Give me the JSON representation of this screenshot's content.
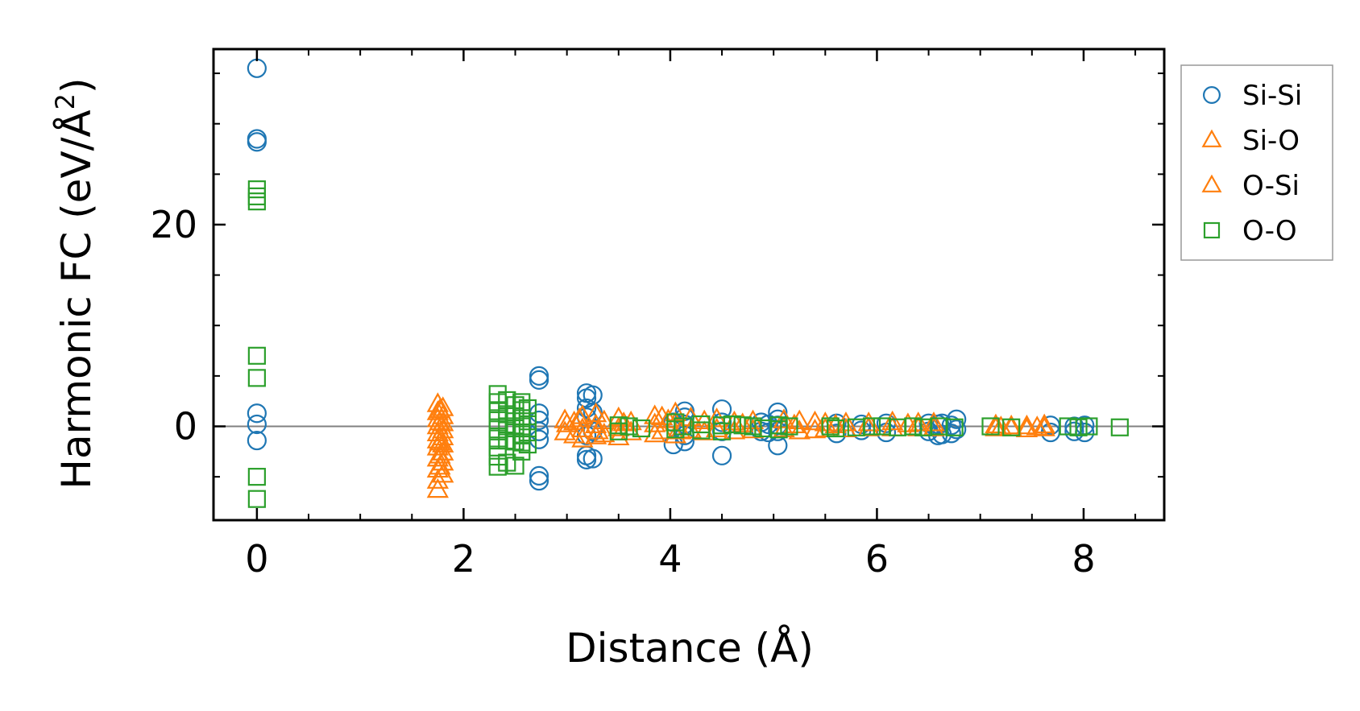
{
  "chart_data": {
    "type": "scatter",
    "title": "",
    "xlabel": "Distance (Å)",
    "ylabel_main": "Harmonic FC (eV/Å",
    "ylabel_sup": "2",
    "ylabel_close": ")",
    "xlim": [
      -0.42,
      8.78
    ],
    "ylim": [
      -9.3,
      37.4
    ],
    "xticks": [
      0,
      2,
      4,
      6,
      8
    ],
    "xtick_labels": [
      "0",
      "2",
      "4",
      "6",
      "8"
    ],
    "yticks": [
      0,
      20
    ],
    "ytick_labels": [
      "0",
      "20"
    ],
    "zero_line": true,
    "grid": false,
    "legend_position": "outside-right-top",
    "series": [
      {
        "name": "Si-Si",
        "marker": "circle",
        "color": "#1f77b4",
        "points": [
          [
            0,
            35.5
          ],
          [
            0,
            28.5
          ],
          [
            0,
            28.2
          ],
          [
            0,
            1.3
          ],
          [
            0,
            0.2
          ],
          [
            0,
            -1.4
          ],
          [
            2.73,
            5.0
          ],
          [
            2.73,
            4.6
          ],
          [
            2.73,
            1.3
          ],
          [
            2.73,
            0.6
          ],
          [
            2.73,
            -0.5
          ],
          [
            2.73,
            -1.3
          ],
          [
            2.73,
            -4.9
          ],
          [
            2.73,
            -5.4
          ],
          [
            3.19,
            3.3
          ],
          [
            3.19,
            2.8
          ],
          [
            3.19,
            1.8
          ],
          [
            3.19,
            0.9
          ],
          [
            3.19,
            -0.9
          ],
          [
            3.19,
            -2.9
          ],
          [
            3.19,
            -3.3
          ],
          [
            3.25,
            3.1
          ],
          [
            3.25,
            1.4
          ],
          [
            3.25,
            -0.5
          ],
          [
            3.25,
            -3.2
          ],
          [
            4.14,
            1.5
          ],
          [
            4.14,
            0.9
          ],
          [
            4.14,
            0.2
          ],
          [
            4.14,
            -0.9
          ],
          [
            4.14,
            -1.5
          ],
          [
            4.03,
            -1.8
          ],
          [
            4.03,
            0.4
          ],
          [
            4.5,
            1.7
          ],
          [
            4.5,
            0.4
          ],
          [
            4.5,
            -0.5
          ],
          [
            4.5,
            -2.9
          ],
          [
            4.88,
            0.4
          ],
          [
            4.88,
            -0.5
          ],
          [
            4.95,
            0.2
          ],
          [
            4.95,
            -0.6
          ],
          [
            5.04,
            1.4
          ],
          [
            5.04,
            0.7
          ],
          [
            5.04,
            0.1
          ],
          [
            5.04,
            -0.5
          ],
          [
            5.04,
            -1.9
          ],
          [
            5.61,
            0.3
          ],
          [
            5.61,
            -0.7
          ],
          [
            5.85,
            0.2
          ],
          [
            5.85,
            -0.4
          ],
          [
            6.09,
            0.3
          ],
          [
            6.09,
            -0.6
          ],
          [
            6.5,
            0.3
          ],
          [
            6.5,
            -0.5
          ],
          [
            6.59,
            0.2
          ],
          [
            6.59,
            -0.9
          ],
          [
            6.63,
            0.3
          ],
          [
            6.63,
            -0.8
          ],
          [
            6.77,
            0.7
          ],
          [
            6.77,
            -0.3
          ],
          [
            6.72,
            0.1
          ],
          [
            6.72,
            -0.7
          ],
          [
            7.68,
            0.1
          ],
          [
            7.68,
            -0.6
          ],
          [
            7.91,
            0.0
          ],
          [
            7.91,
            -0.5
          ],
          [
            8.01,
            0.1
          ],
          [
            8.01,
            -0.6
          ]
        ]
      },
      {
        "name": "Si-O",
        "marker": "triangle",
        "color": "#ff7f0e",
        "points": [
          [
            1.75,
            2.2
          ],
          [
            1.75,
            1.4
          ],
          [
            1.75,
            0.7
          ],
          [
            1.75,
            0.0
          ],
          [
            1.75,
            -0.7
          ],
          [
            1.75,
            -1.4
          ],
          [
            1.75,
            -2.1
          ],
          [
            1.75,
            -3.2
          ],
          [
            1.75,
            -4.3
          ],
          [
            1.75,
            -5.4
          ],
          [
            1.75,
            -6.3
          ],
          [
            1.8,
            1.8
          ],
          [
            1.8,
            1.0
          ],
          [
            1.8,
            0.3
          ],
          [
            1.8,
            -0.4
          ],
          [
            1.8,
            -1.1
          ],
          [
            1.8,
            -1.8
          ],
          [
            1.8,
            -2.6
          ],
          [
            1.8,
            -3.6
          ],
          [
            1.8,
            -4.8
          ],
          [
            2.98,
            0.6
          ],
          [
            2.98,
            -0.6
          ],
          [
            3.07,
            0.4
          ],
          [
            3.07,
            -0.9
          ],
          [
            3.15,
            1.0
          ],
          [
            3.15,
            -0.3
          ],
          [
            3.15,
            -1.3
          ],
          [
            3.28,
            1.2
          ],
          [
            3.28,
            0.1
          ],
          [
            3.28,
            -1.0
          ],
          [
            3.36,
            0.5
          ],
          [
            3.36,
            -0.8
          ],
          [
            3.5,
            0.8
          ],
          [
            3.5,
            -0.2
          ],
          [
            3.5,
            -1.1
          ],
          [
            3.62,
            0.4
          ],
          [
            3.62,
            -0.6
          ],
          [
            3.85,
            1.0
          ],
          [
            3.85,
            0.2
          ],
          [
            3.85,
            -0.8
          ],
          [
            3.92,
            0.9
          ],
          [
            3.92,
            -0.5
          ],
          [
            4.05,
            1.3
          ],
          [
            4.05,
            0.3
          ],
          [
            4.05,
            -0.9
          ],
          [
            4.2,
            0.8
          ],
          [
            4.2,
            -0.4
          ],
          [
            4.33,
            0.5
          ],
          [
            4.33,
            -0.6
          ],
          [
            4.45,
            0.7
          ],
          [
            4.45,
            -0.3
          ],
          [
            4.62,
            0.4
          ],
          [
            4.62,
            -0.5
          ],
          [
            4.8,
            0.5
          ],
          [
            4.8,
            -0.4
          ],
          [
            5.1,
            0.6
          ],
          [
            5.1,
            -0.3
          ],
          [
            5.25,
            0.5
          ],
          [
            5.25,
            -0.5
          ],
          [
            5.4,
            0.4
          ],
          [
            5.4,
            -0.4
          ],
          [
            5.5,
            0.3
          ],
          [
            5.5,
            -0.3
          ],
          [
            5.7,
            0.3
          ],
          [
            5.7,
            -0.3
          ],
          [
            5.92,
            0.3
          ],
          [
            5.92,
            -0.2
          ],
          [
            6.15,
            0.4
          ],
          [
            6.15,
            -0.2
          ],
          [
            6.4,
            0.3
          ],
          [
            6.4,
            -0.2
          ],
          [
            6.55,
            0.3
          ],
          [
            6.55,
            -0.2
          ],
          [
            7.15,
            0.1
          ],
          [
            7.15,
            -0.2
          ],
          [
            7.3,
            0.0
          ],
          [
            7.3,
            -0.2
          ],
          [
            7.45,
            0.0
          ],
          [
            7.45,
            -0.3
          ],
          [
            7.62,
            0.1
          ],
          [
            7.62,
            -0.2
          ]
        ]
      },
      {
        "name": "O-Si",
        "marker": "triangle",
        "color": "#ff7f0e",
        "points": [
          [
            1.77,
            1.6
          ],
          [
            1.77,
            0.4
          ],
          [
            1.77,
            -1.6
          ],
          [
            1.77,
            -2.9
          ],
          [
            1.77,
            -4.0
          ],
          [
            3.0,
            0.2
          ],
          [
            3.12,
            0.7
          ],
          [
            3.3,
            -0.5
          ],
          [
            3.55,
            0.3
          ],
          [
            3.98,
            0.6
          ],
          [
            4.1,
            -0.5
          ],
          [
            4.7,
            0.2
          ],
          [
            5.2,
            0.1
          ],
          [
            5.6,
            0.1
          ],
          [
            6.3,
            0.2
          ],
          [
            7.2,
            -0.1
          ],
          [
            7.55,
            -0.1
          ]
        ]
      },
      {
        "name": "O-O",
        "marker": "square",
        "color": "#2ca02c",
        "points": [
          [
            0,
            23.5
          ],
          [
            0,
            22.8
          ],
          [
            0,
            22.3
          ],
          [
            0,
            7.0
          ],
          [
            0,
            4.8
          ],
          [
            0,
            -5.0
          ],
          [
            0,
            -7.2
          ],
          [
            2.33,
            3.2
          ],
          [
            2.33,
            2.4
          ],
          [
            2.33,
            1.5
          ],
          [
            2.33,
            0.6
          ],
          [
            2.33,
            -0.3
          ],
          [
            2.33,
            -1.2
          ],
          [
            2.33,
            -2.1
          ],
          [
            2.33,
            -3.0
          ],
          [
            2.33,
            -4.0
          ],
          [
            2.42,
            2.6
          ],
          [
            2.42,
            1.2
          ],
          [
            2.42,
            0.0
          ],
          [
            2.42,
            -1.4
          ],
          [
            2.42,
            -3.6
          ],
          [
            2.5,
            2.1
          ],
          [
            2.5,
            1.0
          ],
          [
            2.5,
            -0.2
          ],
          [
            2.5,
            -1.5
          ],
          [
            2.5,
            -3.9
          ],
          [
            2.56,
            2.4
          ],
          [
            2.56,
            1.6
          ],
          [
            2.56,
            0.8
          ],
          [
            2.56,
            0.0
          ],
          [
            2.56,
            -0.8
          ],
          [
            2.56,
            -1.6
          ],
          [
            2.56,
            -2.5
          ],
          [
            2.62,
            1.8
          ],
          [
            2.62,
            0.5
          ],
          [
            2.62,
            -0.6
          ],
          [
            2.62,
            -1.8
          ],
          [
            3.5,
            0.1
          ],
          [
            3.5,
            -0.5
          ],
          [
            3.6,
            0.0
          ],
          [
            3.72,
            -0.2
          ],
          [
            4.05,
            0.4
          ],
          [
            4.05,
            -0.3
          ],
          [
            4.12,
            0.0
          ],
          [
            4.3,
            0.2
          ],
          [
            4.3,
            -0.4
          ],
          [
            4.5,
            0.1
          ],
          [
            4.5,
            -0.5
          ],
          [
            4.6,
            0.2
          ],
          [
            4.7,
            0.1
          ],
          [
            4.8,
            0.0
          ],
          [
            4.9,
            -0.2
          ],
          [
            5.05,
            0.1
          ],
          [
            5.05,
            -0.3
          ],
          [
            5.15,
            0.0
          ],
          [
            5.55,
            0.0
          ],
          [
            5.6,
            -0.2
          ],
          [
            5.8,
            -0.1
          ],
          [
            5.95,
            0.0
          ],
          [
            6.05,
            0.0
          ],
          [
            6.2,
            -0.1
          ],
          [
            6.35,
            0.0
          ],
          [
            6.45,
            -0.1
          ],
          [
            6.6,
            0.0
          ],
          [
            6.75,
            -0.1
          ],
          [
            7.1,
            0.0
          ],
          [
            7.3,
            -0.1
          ],
          [
            7.85,
            0.0
          ],
          [
            7.95,
            -0.1
          ],
          [
            8.05,
            0.0
          ],
          [
            8.35,
            -0.1
          ]
        ]
      }
    ],
    "legend": [
      {
        "label": "Si-Si",
        "marker": "circle",
        "color": "#1f77b4"
      },
      {
        "label": "Si-O",
        "marker": "triangle",
        "color": "#ff7f0e"
      },
      {
        "label": "O-Si",
        "marker": "triangle",
        "color": "#ff7f0e"
      },
      {
        "label": "O-O",
        "marker": "square",
        "color": "#2ca02c"
      }
    ]
  }
}
